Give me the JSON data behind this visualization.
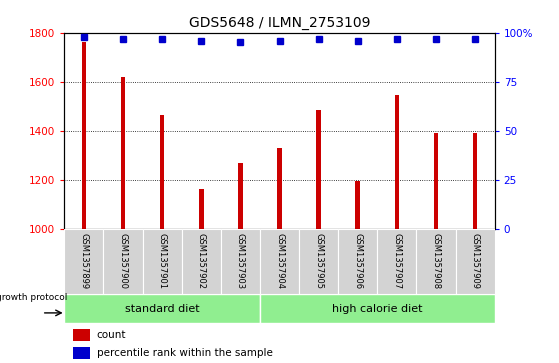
{
  "title": "GDS5648 / ILMN_2753109",
  "samples": [
    "GSM1357899",
    "GSM1357900",
    "GSM1357901",
    "GSM1357902",
    "GSM1357903",
    "GSM1357904",
    "GSM1357905",
    "GSM1357906",
    "GSM1357907",
    "GSM1357908",
    "GSM1357909"
  ],
  "counts": [
    1760,
    1620,
    1465,
    1160,
    1270,
    1330,
    1485,
    1195,
    1545,
    1390,
    1390
  ],
  "percentiles": [
    98,
    97,
    97,
    96,
    95,
    96,
    97,
    96,
    97,
    97,
    97
  ],
  "ylim_left": [
    1000,
    1800
  ],
  "ylim_right": [
    0,
    100
  ],
  "yticks_left": [
    1000,
    1200,
    1400,
    1600,
    1800
  ],
  "yticks_right": [
    0,
    25,
    50,
    75,
    100
  ],
  "bar_color": "#cc0000",
  "dot_color": "#0000cc",
  "sample_bg_color": "#d3d3d3",
  "std_diet_color": "#90ee90",
  "high_cal_color": "#90ee90",
  "std_diet_label": "standard diet",
  "high_cal_label": "high calorie diet",
  "std_diet_samples": 5,
  "high_cal_samples": 6,
  "growth_protocol_label": "growth protocol",
  "legend_count_label": "count",
  "legend_pct_label": "percentile rank within the sample",
  "bar_width": 0.12
}
